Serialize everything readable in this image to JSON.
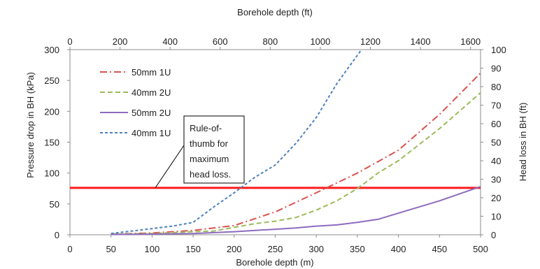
{
  "chart_data": {
    "type": "line",
    "xlabel": "Borehole depth (m)",
    "x2label": "Borehole depth (ft)",
    "ylabel": "Pressure drop in BH (kPa)",
    "y2label": "Head loss in BH (ft)",
    "xlim": [
      0,
      500
    ],
    "x2lim": [
      0,
      1640
    ],
    "ylim": [
      0,
      300
    ],
    "y2lim": [
      0,
      100
    ],
    "x_ticks": [
      "0",
      "50",
      "100",
      "150",
      "200",
      "250",
      "300",
      "350",
      "400",
      "450",
      "500"
    ],
    "x2_ticks": [
      "0",
      "200",
      "400",
      "600",
      "800",
      "1000",
      "1200",
      "1400",
      "1600"
    ],
    "y_ticks": [
      "0",
      "50",
      "100",
      "150",
      "200",
      "250",
      "300"
    ],
    "y2_ticks": [
      "0",
      "10",
      "20",
      "30",
      "40",
      "50",
      "60",
      "70",
      "80",
      "90",
      "100"
    ],
    "grid": false,
    "legend_position": "top-left",
    "series": [
      {
        "name": "50mm 1U",
        "color": "#d9534f",
        "style": "dash-dot",
        "x": [
          50,
          100,
          150,
          200,
          250,
          300,
          350,
          400,
          450,
          500
        ],
        "y": [
          1,
          3,
          7,
          15,
          37,
          68,
          100,
          137,
          195,
          262
        ]
      },
      {
        "name": "40mm 2U",
        "color": "#9bbb59",
        "style": "dash",
        "x": [
          50,
          100,
          150,
          175,
          200,
          225,
          250,
          275,
          300,
          325,
          350,
          375,
          400,
          450,
          500
        ],
        "y": [
          1,
          2,
          5,
          6,
          12,
          18,
          22,
          28,
          40,
          55,
          75,
          100,
          120,
          172,
          230
        ]
      },
      {
        "name": "50mm 2U",
        "color": "#8e6bbf",
        "style": "solid",
        "x": [
          50,
          100,
          150,
          200,
          250,
          275,
          300,
          325,
          350,
          375,
          400,
          450,
          500
        ],
        "y": [
          0.5,
          1,
          2,
          5,
          9,
          11,
          14,
          16,
          20,
          25,
          35,
          55,
          78
        ]
      },
      {
        "name": "40mm 1U",
        "color": "#4f81bd",
        "style": "short-dash",
        "x": [
          50,
          100,
          125,
          150,
          175,
          200,
          225,
          250,
          275,
          300,
          325,
          355
        ],
        "y": [
          2,
          10,
          14,
          20,
          45,
          68,
          93,
          113,
          148,
          190,
          245,
          300
        ]
      }
    ],
    "threshold": {
      "value": 76,
      "color": "#ff1a1a"
    },
    "annotation": {
      "lines": [
        "Rule-of-",
        "thumb for",
        "maximum",
        "head loss."
      ]
    }
  }
}
